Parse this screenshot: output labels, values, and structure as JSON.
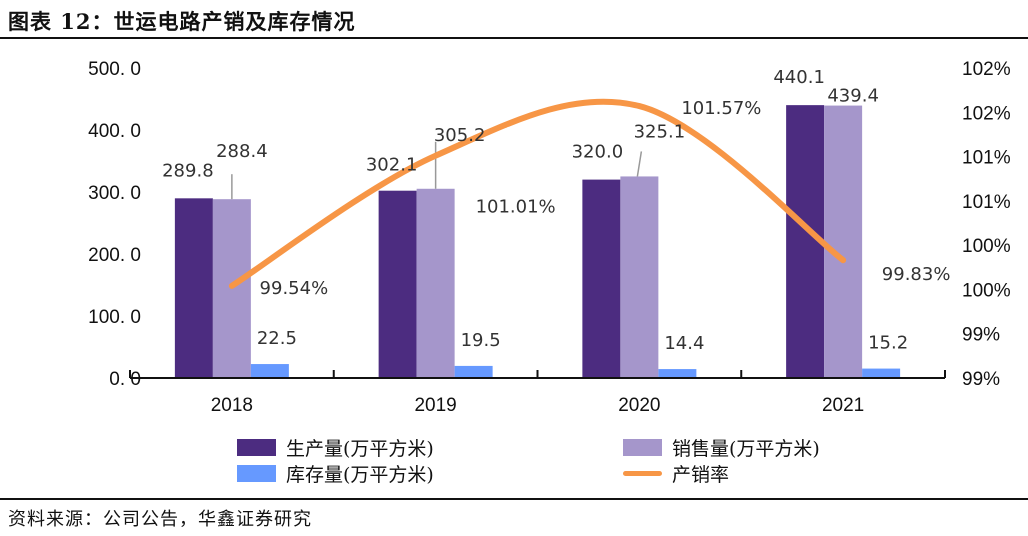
{
  "header": {
    "title": "图表 12：世运电路产销及库存情况"
  },
  "footer": {
    "source": "资料来源：公司公告，华鑫证券研究"
  },
  "colors": {
    "production": "#4c2c80",
    "sales": "#a596cb",
    "inventory": "#6699ff",
    "ratio": "#f79646",
    "leader": "#999999",
    "axis": "#111111"
  },
  "legend": [
    {
      "key": "production",
      "label": "生产量(万平方米)",
      "type": "bar"
    },
    {
      "key": "sales",
      "label": "销售量(万平方米)",
      "type": "bar"
    },
    {
      "key": "inventory",
      "label": "库存量(万平方米)",
      "type": "bar"
    },
    {
      "key": "ratio",
      "label": "产销率",
      "type": "line"
    }
  ],
  "chart_data": {
    "type": "bar",
    "title": "世运电路产销及库存情况",
    "categories": [
      "2018",
      "2019",
      "2020",
      "2021"
    ],
    "series": [
      {
        "name": "生产量(万平方米)",
        "key": "production",
        "type": "bar",
        "axis": "left",
        "values": [
          289.8,
          302.1,
          320.0,
          440.1
        ],
        "labels": [
          "289.8",
          "302.1",
          "320.0",
          "440.1"
        ]
      },
      {
        "name": "销售量(万平方米)",
        "key": "sales",
        "type": "bar",
        "axis": "left",
        "values": [
          288.4,
          305.2,
          325.1,
          439.4
        ],
        "labels": [
          "288.4",
          "305.2",
          "325.1",
          "439.4"
        ]
      },
      {
        "name": "库存量(万平方米)",
        "key": "inventory",
        "type": "bar",
        "axis": "left",
        "values": [
          22.5,
          19.5,
          14.4,
          15.2
        ],
        "labels": [
          "22.5",
          "19.5",
          "14.4",
          "15.2"
        ]
      },
      {
        "name": "产销率",
        "key": "ratio",
        "type": "line",
        "axis": "right",
        "smooth": true,
        "values": [
          99.54,
          101.01,
          101.57,
          99.83
        ],
        "labels": [
          "99.54%",
          "101.01%",
          "101.57%",
          "99.83%"
        ]
      }
    ],
    "left_axis": {
      "ylim": [
        0,
        500
      ],
      "ticks": [
        0,
        100,
        200,
        300,
        400,
        500
      ],
      "tick_labels": [
        "0. 0",
        "100. 0",
        "200. 0",
        "300. 0",
        "400. 0",
        "500. 0"
      ]
    },
    "right_axis": {
      "ylim": [
        98.5,
        102.0
      ],
      "ticks": [
        98.5,
        99.0,
        99.5,
        100.0,
        100.5,
        101.0,
        101.5,
        102.0
      ],
      "tick_labels": [
        "99%",
        "99%",
        "100%",
        "100%",
        "101%",
        "101%",
        "102%",
        "102%"
      ]
    },
    "xlabel": "",
    "ylabel": "",
    "grid": false,
    "legend_position": "bottom"
  }
}
